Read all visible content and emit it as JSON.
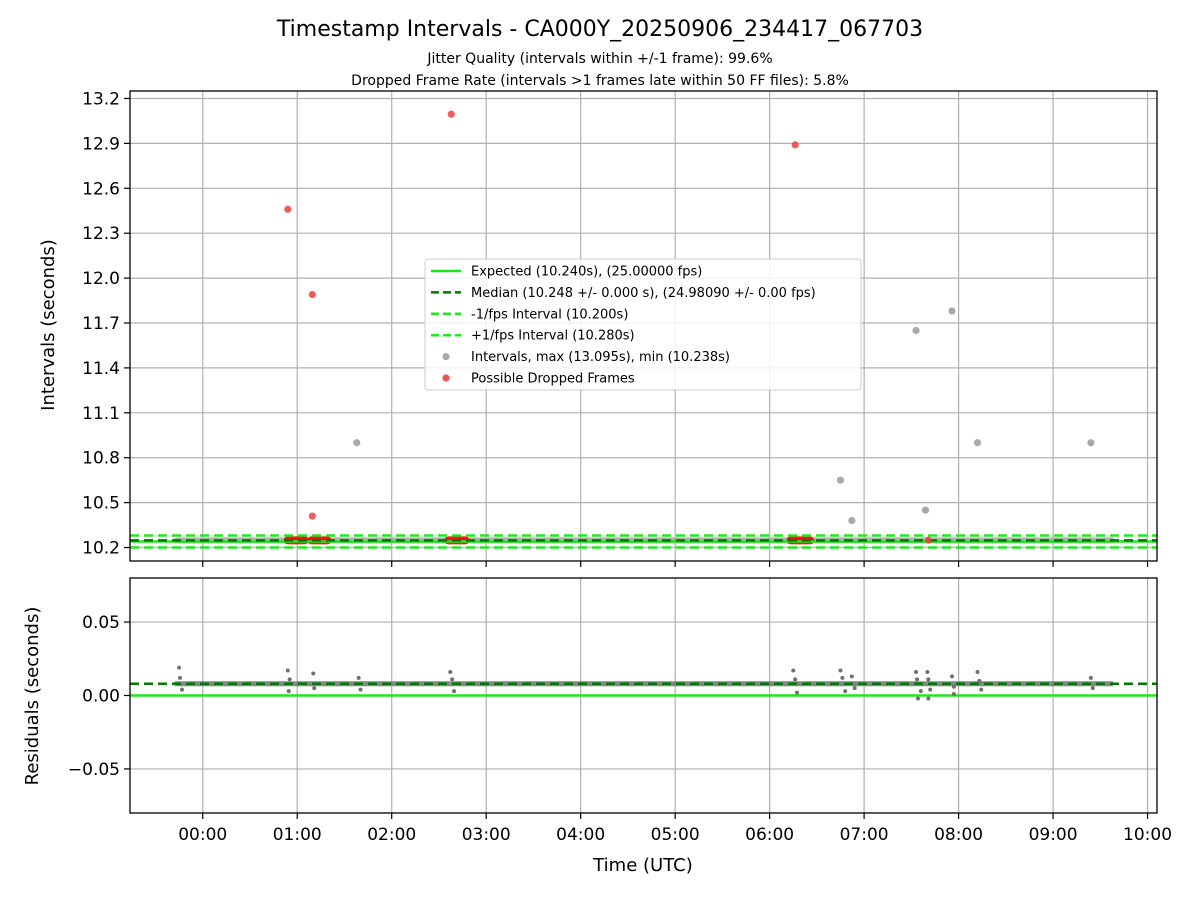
{
  "chart_data": {
    "title": "Timestamp Intervals - CA000Y_20250906_234417_067703",
    "subtitle_lines": [
      "Jitter Quality (intervals within +/-1 frame): 99.6%",
      "Dropped Frame Rate (intervals >1 frames late within 50 FF files): 5.8%"
    ],
    "colors": {
      "expected": "#1ee61e",
      "median": "#007a00",
      "interval_bounds": "#20e820",
      "intervals": "#a0a0a0",
      "dropped": "#f04040",
      "residuals": "#707070"
    },
    "top_panel": {
      "type": "scatter",
      "ylabel": "Intervals (seconds)",
      "ylim": [
        10.11,
        13.25
      ],
      "yticks": [
        10.2,
        10.5,
        10.8,
        11.1,
        11.4,
        11.7,
        12.0,
        12.3,
        12.6,
        12.9,
        13.2
      ],
      "ytick_labels": [
        "10.2",
        "10.5",
        "10.8",
        "11.1",
        "11.4",
        "11.7",
        "12.0",
        "12.3",
        "12.6",
        "12.9",
        "13.2"
      ],
      "lines": {
        "expected": 10.24,
        "median": 10.248,
        "minus_fps": 10.2,
        "plus_fps": 10.28
      },
      "legend": {
        "placement": "center",
        "entries": [
          {
            "label": "Expected (10.240s), (25.00000 fps)",
            "style": "solid",
            "color_key": "expected"
          },
          {
            "label": "Median (10.248 +/- 0.000 s), (24.98090 +/- 0.00 fps)",
            "style": "dashed",
            "color_key": "median"
          },
          {
            "label": "-1/fps Interval (10.200s)",
            "style": "dashed",
            "color_key": "interval_bounds"
          },
          {
            "label": "+1/fps Interval (10.280s)",
            "style": "dashed",
            "color_key": "interval_bounds"
          },
          {
            "label": "Intervals, max (13.095s), min (10.238s)",
            "style": "marker",
            "color_key": "intervals"
          },
          {
            "label": "Possible Dropped Frames",
            "style": "marker",
            "color_key": "dropped"
          }
        ]
      },
      "interval_points": [
        {
          "x": 1.63,
          "y": 10.9
        },
        {
          "x": 6.75,
          "y": 10.65
        },
        {
          "x": 6.87,
          "y": 10.38
        },
        {
          "x": 7.55,
          "y": 11.65
        },
        {
          "x": 7.65,
          "y": 10.45
        },
        {
          "x": 7.93,
          "y": 11.78
        },
        {
          "x": 8.2,
          "y": 10.9
        },
        {
          "x": 9.4,
          "y": 10.9
        }
      ],
      "dropped_points": [
        {
          "x": 0.9,
          "y": 12.46
        },
        {
          "x": 1.16,
          "y": 11.89
        },
        {
          "x": 1.16,
          "y": 10.41
        },
        {
          "x": 2.63,
          "y": 13.095
        },
        {
          "x": 6.27,
          "y": 12.89
        },
        {
          "x": 7.68,
          "y": 10.25
        }
      ],
      "dropped_clusters": [
        {
          "x_start": 0.9,
          "x_end": 1.08,
          "y": 10.248
        },
        {
          "x_start": 1.15,
          "x_end": 1.32,
          "y": 10.248
        },
        {
          "x_start": 2.6,
          "x_end": 2.78,
          "y": 10.248
        },
        {
          "x_start": 6.22,
          "x_end": 6.43,
          "y": 10.248
        }
      ],
      "interval_band": {
        "x_start": -0.28,
        "x_end": 9.62,
        "y": 10.248
      }
    },
    "bottom_panel": {
      "type": "scatter",
      "ylabel": "Residuals (seconds)",
      "ylim": [
        -0.08,
        0.08
      ],
      "yticks": [
        -0.05,
        0.0,
        0.05
      ],
      "ytick_labels": [
        "−0.05",
        "0.00",
        "0.05"
      ],
      "expected_line": 0.0,
      "median_line": 0.008,
      "residual_band": {
        "x_start": -0.28,
        "x_end": 9.62,
        "y": 0.008
      },
      "residual_points": [
        {
          "x": -0.25,
          "y": 0.019
        },
        {
          "x": -0.24,
          "y": 0.012
        },
        {
          "x": -0.22,
          "y": 0.004
        },
        {
          "x": 0.9,
          "y": 0.017
        },
        {
          "x": 0.92,
          "y": 0.011
        },
        {
          "x": 0.91,
          "y": 0.003
        },
        {
          "x": 1.17,
          "y": 0.015
        },
        {
          "x": 1.18,
          "y": 0.005
        },
        {
          "x": 1.65,
          "y": 0.012
        },
        {
          "x": 1.67,
          "y": 0.004
        },
        {
          "x": 2.62,
          "y": 0.016
        },
        {
          "x": 2.64,
          "y": 0.011
        },
        {
          "x": 2.66,
          "y": 0.003
        },
        {
          "x": 6.25,
          "y": 0.017
        },
        {
          "x": 6.27,
          "y": 0.011
        },
        {
          "x": 6.29,
          "y": 0.002
        },
        {
          "x": 6.75,
          "y": 0.017
        },
        {
          "x": 6.77,
          "y": 0.012
        },
        {
          "x": 6.8,
          "y": 0.003
        },
        {
          "x": 6.87,
          "y": 0.013
        },
        {
          "x": 6.9,
          "y": 0.005
        },
        {
          "x": 7.55,
          "y": 0.016
        },
        {
          "x": 7.56,
          "y": 0.011
        },
        {
          "x": 7.57,
          "y": -0.002
        },
        {
          "x": 7.6,
          "y": 0.003
        },
        {
          "x": 7.67,
          "y": 0.016
        },
        {
          "x": 7.68,
          "y": 0.011
        },
        {
          "x": 7.68,
          "y": -0.002
        },
        {
          "x": 7.7,
          "y": 0.004
        },
        {
          "x": 7.93,
          "y": 0.013
        },
        {
          "x": 7.95,
          "y": 0.006
        },
        {
          "x": 7.95,
          "y": 0.001
        },
        {
          "x": 8.2,
          "y": 0.016
        },
        {
          "x": 8.22,
          "y": 0.01
        },
        {
          "x": 8.24,
          "y": 0.004
        },
        {
          "x": 9.4,
          "y": 0.012
        },
        {
          "x": 9.42,
          "y": 0.005
        }
      ]
    },
    "x_axis": {
      "label": "Time (UTC)",
      "xlim": [
        -0.77,
        10.1
      ],
      "ticks": [
        0,
        1,
        2,
        3,
        4,
        5,
        6,
        7,
        8,
        9,
        10
      ],
      "tick_labels": [
        "00:00",
        "01:00",
        "02:00",
        "03:00",
        "04:00",
        "05:00",
        "06:00",
        "07:00",
        "08:00",
        "09:00",
        "10:00"
      ]
    },
    "grid": true
  }
}
